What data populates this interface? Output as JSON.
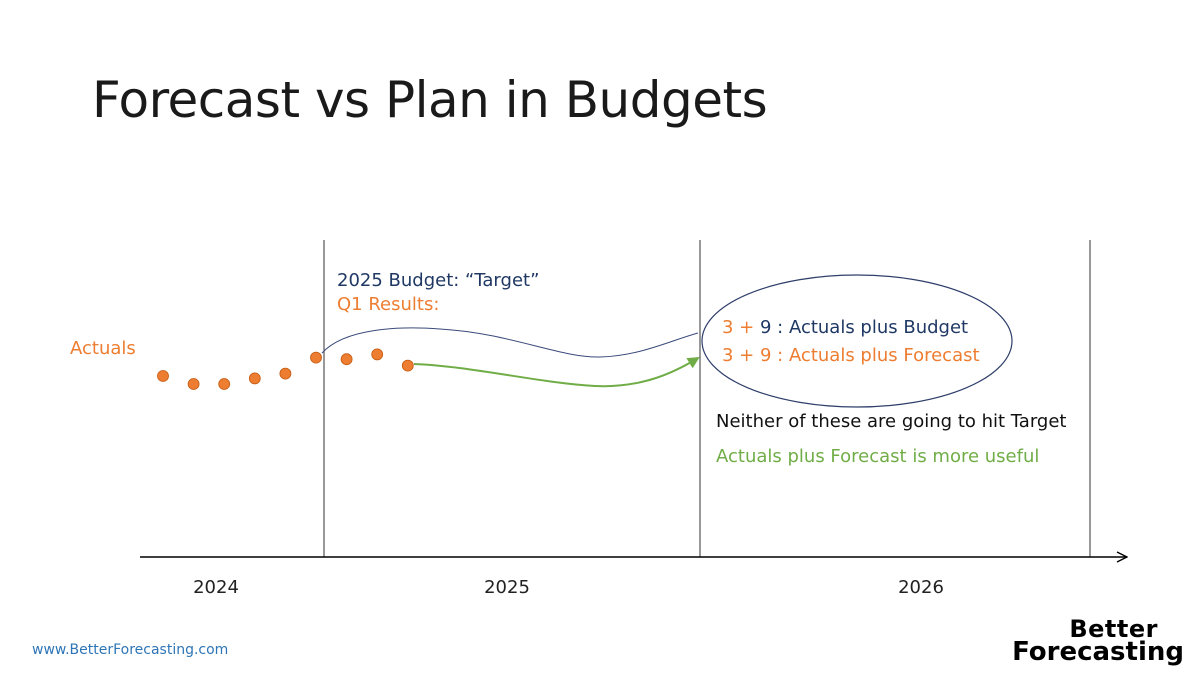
{
  "slide": {
    "title": "Forecast vs Plan in Budgets"
  },
  "labels": {
    "actuals": "Actuals",
    "budget_target": "2025 Budget: “Target”",
    "q1_results": "Q1 Results:",
    "budget_line_prefix": "3 + ",
    "budget_line_rest": "9 : Actuals plus Budget",
    "forecast_line": "3 + 9 : Actuals plus Forecast",
    "neither": "Neither of these are going to hit Target",
    "more_useful": "Actuals plus Forecast is more useful"
  },
  "timeline": {
    "years": [
      "2024",
      "2025",
      "2026"
    ]
  },
  "actuals_points": [
    {
      "period": 1,
      "value": 0.55
    },
    {
      "period": 2,
      "value": 0.45
    },
    {
      "period": 3,
      "value": 0.45
    },
    {
      "period": 4,
      "value": 0.52
    },
    {
      "period": 5,
      "value": 0.58
    },
    {
      "period": 6,
      "value": 0.78
    },
    {
      "period": 7,
      "value": 0.76
    },
    {
      "period": 8,
      "value": 0.82
    },
    {
      "period": 9,
      "value": 0.68
    }
  ],
  "footer": {
    "website": "www.BetterForecasting.com",
    "logo_line1": "Better",
    "logo_line2": "Forecasting"
  },
  "colors": {
    "actuals": "#ed7d31",
    "budget": "#1f3864",
    "forecast": "#70ad47",
    "ellipse": "#2f3f6b",
    "axis": "#000000"
  }
}
